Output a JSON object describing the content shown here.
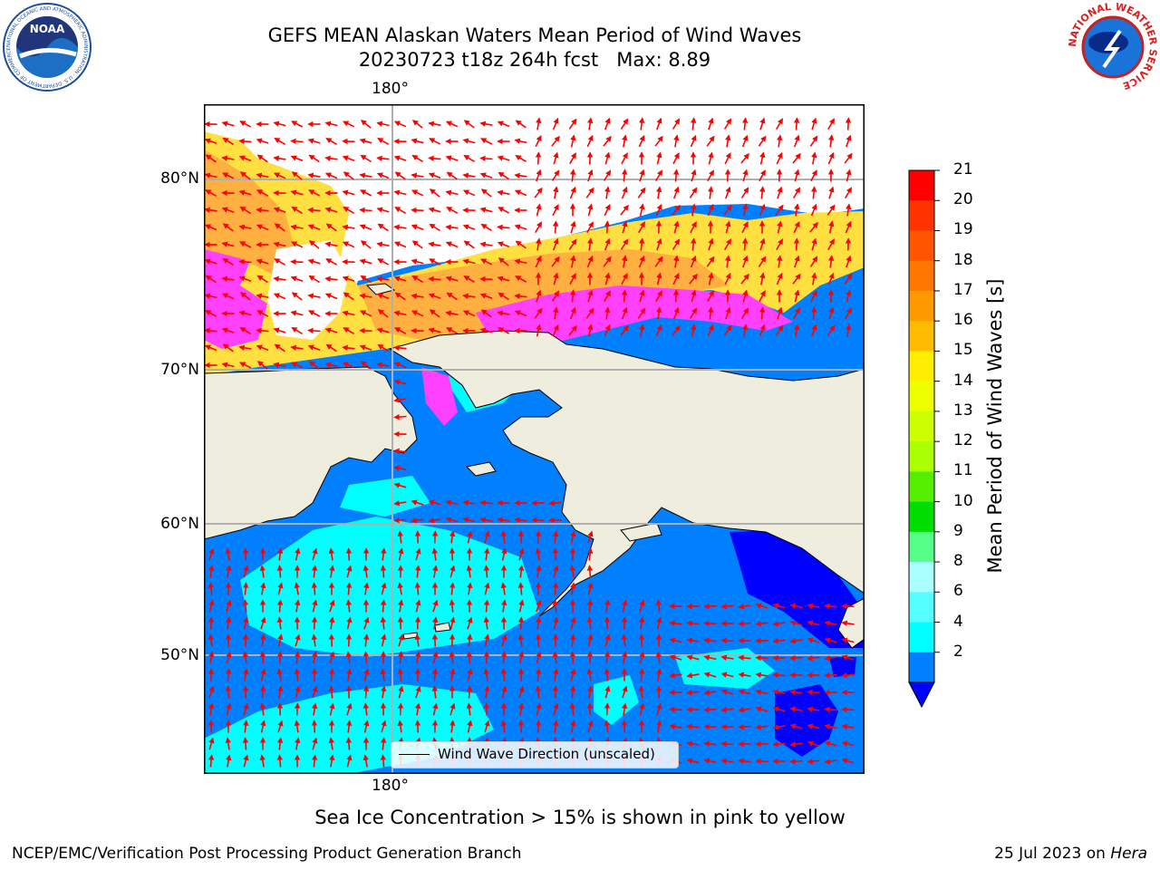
{
  "header": {
    "title_line1": "GEFS MEAN Alaskan Waters Mean Period of Wind Waves",
    "title_line2": "20230723 t18z 264h fcst   Max: 8.89",
    "noaa_logo_text": "NOAA",
    "noaa_ring_text": "NATIONAL OCEANIC AND ATMOSPHERIC ADMINISTRATION · U.S. DEPARTMENT OF COMMERCE",
    "nws_ring_text": "NATIONAL WEATHER SERVICE"
  },
  "map": {
    "longitude_label_top": "180°",
    "longitude_label_bottom": "180°",
    "latitude_labels": [
      "80°N",
      "70°N",
      "60°N",
      "50°N"
    ],
    "legend_label": "Wind Wave Direction (unscaled)",
    "colors": {
      "land": "#efedde",
      "ocean_2_4": "#0080ff",
      "ocean_4_6": "#00ffff",
      "ocean_lt_2": "#0000ff",
      "arrow": "#ff0000",
      "ice_pink": "#ff40ff",
      "ice_orange": "#ffc040",
      "ice_yellow": "#ffe040"
    }
  },
  "colorbar": {
    "label": "Mean Period of Wind Waves [s]",
    "ticks": [
      "21",
      "20",
      "19",
      "18",
      "17",
      "16",
      "15",
      "14",
      "13",
      "12",
      "11",
      "10",
      "9",
      "8",
      "6",
      "4",
      "2"
    ],
    "colors_top_to_bottom": [
      "#ff0000",
      "#ff3300",
      "#ff5500",
      "#ff7700",
      "#ff9900",
      "#ffbb00",
      "#ffee00",
      "#eeff00",
      "#ccff00",
      "#aaff00",
      "#55ee00",
      "#00dd00",
      "#55ff88",
      "#aaffff",
      "#55ffff",
      "#00ffff",
      "#0080ff"
    ],
    "under_color": "#0000ff"
  },
  "annotation": {
    "ice_note": "Sea Ice Concentration > 15% is shown in pink to yellow"
  },
  "footer": {
    "left": "NCEP/EMC/Verification Post Processing Product Generation Branch",
    "right_date": "25 Jul 2023 on ",
    "right_machine": "Hera"
  }
}
